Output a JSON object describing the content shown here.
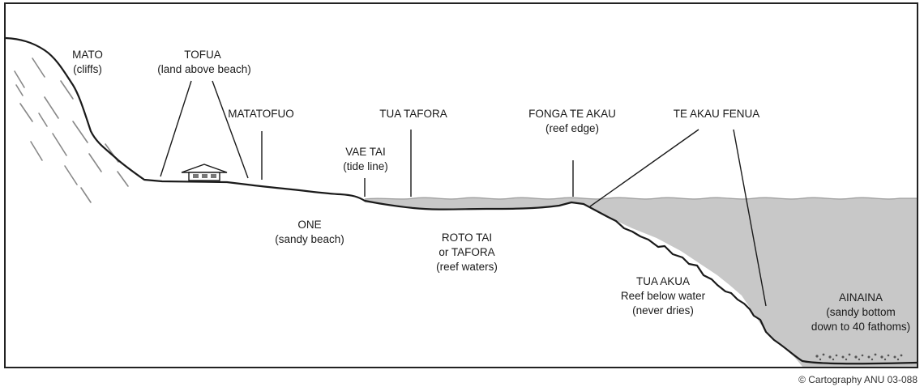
{
  "colors": {
    "water": "#c8c8c8",
    "line": "#1a1a1a",
    "background": "#ffffff"
  },
  "labels": {
    "mato": "MATO",
    "mato_sub": "(cliffs)",
    "tofua": "TOFUA",
    "tofua_sub": "(land above beach)",
    "matatofuo": "MATATOFUO",
    "vae_tai": "VAE TAI",
    "vae_tai_sub": "(tide line)",
    "tua_tafora": "TUA TAFORA",
    "fonga": "FONGA TE AKAU",
    "fonga_sub": "(reef edge)",
    "te_akau_fenua": "TE AKAU FENUA",
    "one": "ONE",
    "one_sub": "(sandy beach)",
    "roto_tai_1": "ROTO TAI",
    "roto_tai_2": "or TAFORA",
    "roto_tai_3": "(reef waters)",
    "tua_akua_1": "TUA AKUA",
    "tua_akua_2": "Reef below water",
    "tua_akua_3": "(never dries)",
    "ainaina_1": "AINAINA",
    "ainaina_2": "(sandy bottom",
    "ainaina_3": "down to 40 fathoms)"
  },
  "credit": "© Cartography ANU 03-088"
}
